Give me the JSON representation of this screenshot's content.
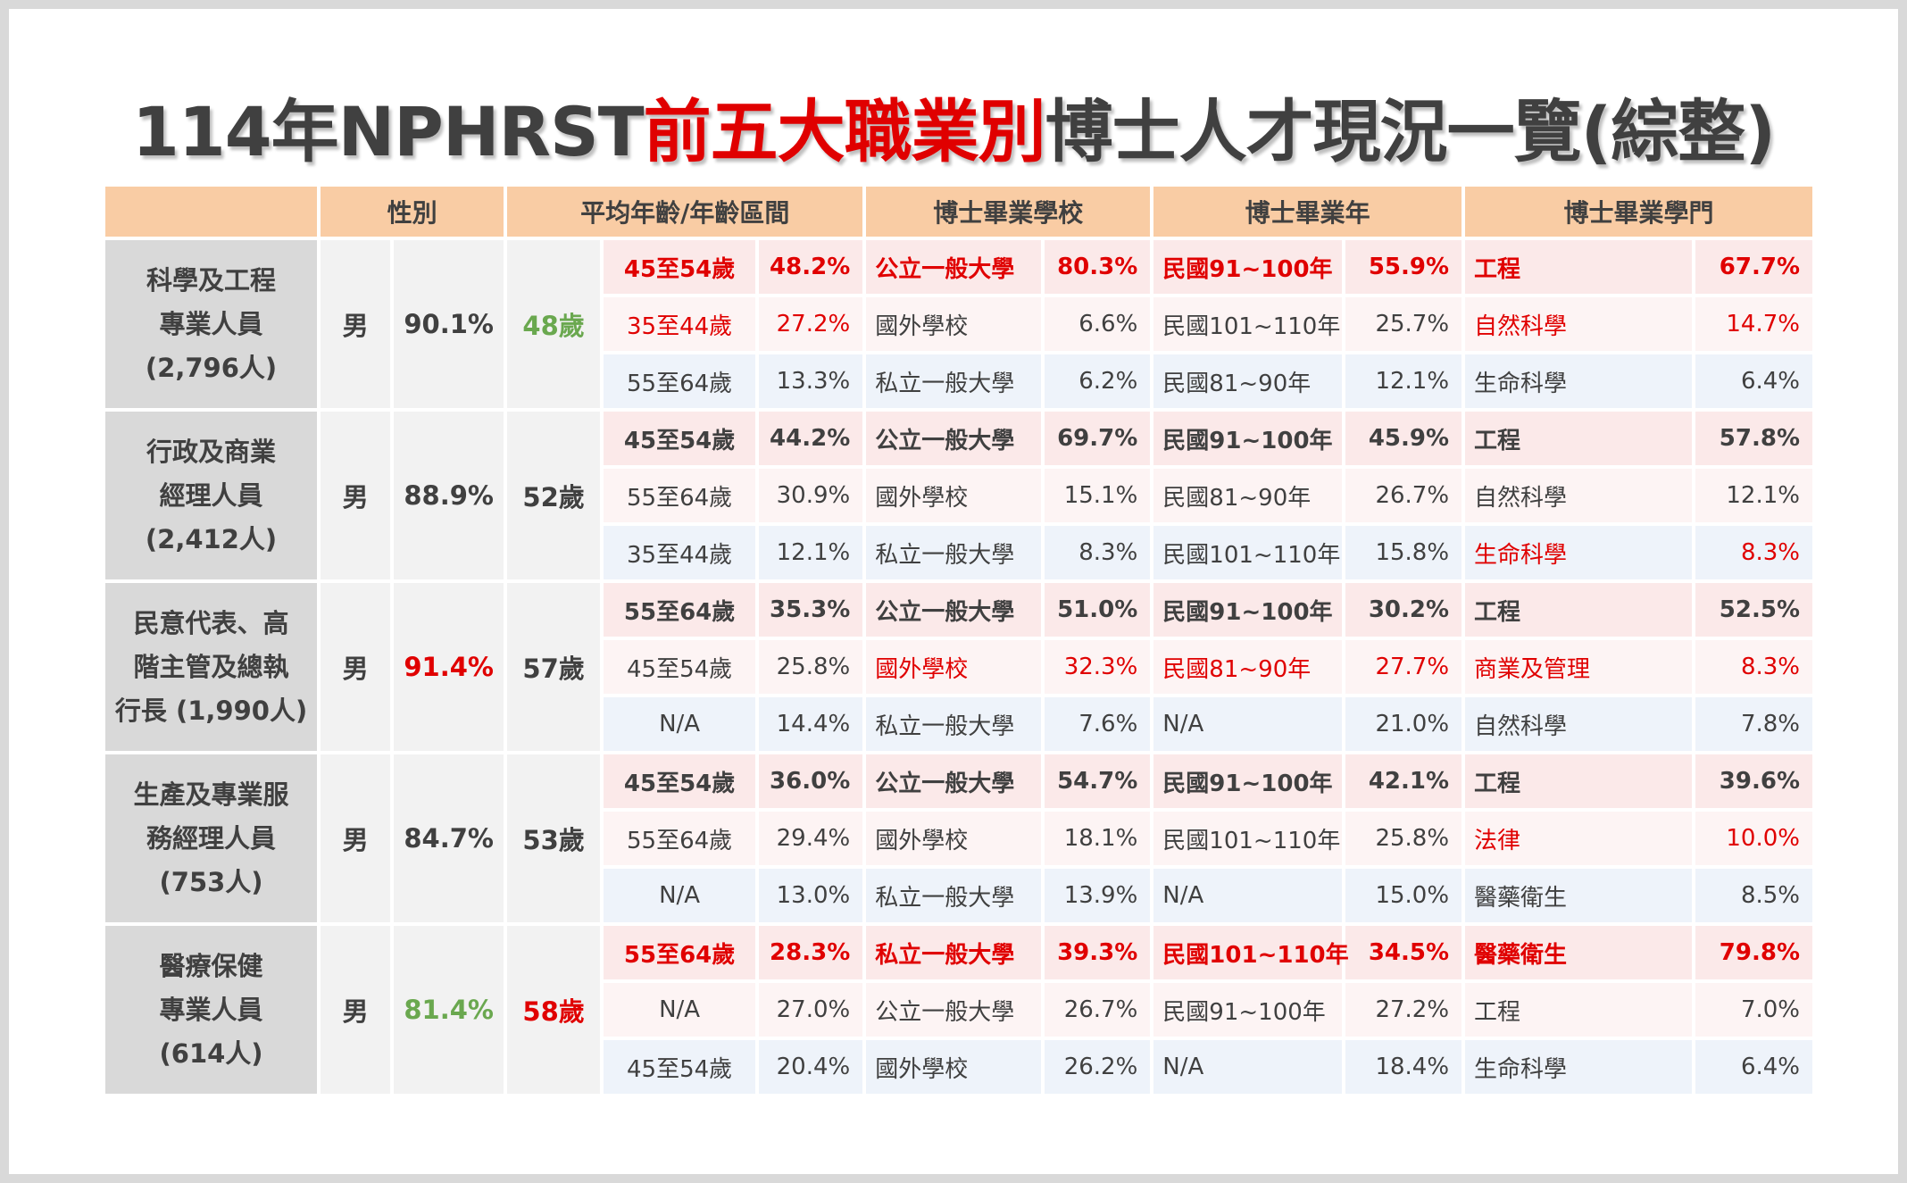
{
  "title": {
    "pre": "114年NPHRST",
    "highlight": "前五大職業別",
    "post": "博士人才現況一覽(綜整)"
  },
  "headers": {
    "occupation": "",
    "gender": "性別",
    "age": "平均年齡/年齡區間",
    "school": "博士畢業學校",
    "year": "博士畢業年",
    "field": "博士畢業學門"
  },
  "colors": {
    "accent_red": "#e00000",
    "accent_green": "#6aa84f",
    "header_bg": "#f9cca4"
  },
  "groups": [
    {
      "occupation": "科學及工程\n專業人員\n(2,796人)",
      "gender": "男",
      "gender_pct": "90.1%",
      "avg_age": "48歲",
      "rows": [
        {
          "age": "45至54歲",
          "age_pct": "48.2%",
          "school": "公立一般大學",
          "school_pct": "80.3%",
          "year": "民國91~100年",
          "year_pct": "55.9%",
          "field": "工程",
          "field_pct": "67.7%"
        },
        {
          "age": "35至44歲",
          "age_pct": "27.2%",
          "school": "國外學校",
          "school_pct": "6.6%",
          "year": "民國101~110年",
          "year_pct": "25.7%",
          "field": "自然科學",
          "field_pct": "14.7%"
        },
        {
          "age": "55至64歲",
          "age_pct": "13.3%",
          "school": "私立一般大學",
          "school_pct": "6.2%",
          "year": "民國81~90年",
          "year_pct": "12.1%",
          "field": "生命科學",
          "field_pct": "6.4%"
        }
      ]
    },
    {
      "occupation": "行政及商業\n經理人員\n(2,412人)",
      "gender": "男",
      "gender_pct": "88.9%",
      "avg_age": "52歲",
      "rows": [
        {
          "age": "45至54歲",
          "age_pct": "44.2%",
          "school": "公立一般大學",
          "school_pct": "69.7%",
          "year": "民國91~100年",
          "year_pct": "45.9%",
          "field": "工程",
          "field_pct": "57.8%"
        },
        {
          "age": "55至64歲",
          "age_pct": "30.9%",
          "school": "國外學校",
          "school_pct": "15.1%",
          "year": "民國81~90年",
          "year_pct": "26.7%",
          "field": "自然科學",
          "field_pct": "12.1%"
        },
        {
          "age": "35至44歲",
          "age_pct": "12.1%",
          "school": "私立一般大學",
          "school_pct": "8.3%",
          "year": "民國101~110年",
          "year_pct": "15.8%",
          "field": "生命科學",
          "field_pct": "8.3%"
        }
      ]
    },
    {
      "occupation": "民意代表、高\n階主管及總執\n行長 (1,990人)",
      "gender": "男",
      "gender_pct": "91.4%",
      "avg_age": "57歲",
      "rows": [
        {
          "age": "55至64歲",
          "age_pct": "35.3%",
          "school": "公立一般大學",
          "school_pct": "51.0%",
          "year": "民國91~100年",
          "year_pct": "30.2%",
          "field": "工程",
          "field_pct": "52.5%"
        },
        {
          "age": "45至54歲",
          "age_pct": "25.8%",
          "school": "國外學校",
          "school_pct": "32.3%",
          "year": "民國81~90年",
          "year_pct": "27.7%",
          "field": "商業及管理",
          "field_pct": "8.3%"
        },
        {
          "age": "N/A",
          "age_pct": "14.4%",
          "school": "私立一般大學",
          "school_pct": "7.6%",
          "year": "N/A",
          "year_pct": "21.0%",
          "field": "自然科學",
          "field_pct": "7.8%"
        }
      ]
    },
    {
      "occupation": "生產及專業服\n務經理人員\n(753人)",
      "gender": "男",
      "gender_pct": "84.7%",
      "avg_age": "53歲",
      "rows": [
        {
          "age": "45至54歲",
          "age_pct": "36.0%",
          "school": "公立一般大學",
          "school_pct": "54.7%",
          "year": "民國91~100年",
          "year_pct": "42.1%",
          "field": "工程",
          "field_pct": "39.6%"
        },
        {
          "age": "55至64歲",
          "age_pct": "29.4%",
          "school": "國外學校",
          "school_pct": "18.1%",
          "year": "民國101~110年",
          "year_pct": "25.8%",
          "field": "法律",
          "field_pct": "10.0%"
        },
        {
          "age": "N/A",
          "age_pct": "13.0%",
          "school": "私立一般大學",
          "school_pct": "13.9%",
          "year": "N/A",
          "year_pct": "15.0%",
          "field": "醫藥衛生",
          "field_pct": "8.5%"
        }
      ]
    },
    {
      "occupation": "醫療保健\n專業人員\n(614人)",
      "gender": "男",
      "gender_pct": "81.4%",
      "avg_age": "58歲",
      "rows": [
        {
          "age": "55至64歲",
          "age_pct": "28.3%",
          "school": "私立一般大學",
          "school_pct": "39.3%",
          "year": "民國101~110年",
          "year_pct": "34.5%",
          "field": "醫藥衛生",
          "field_pct": "79.8%"
        },
        {
          "age": "N/A",
          "age_pct": "27.0%",
          "school": "公立一般大學",
          "school_pct": "26.7%",
          "year": "民國91~100年",
          "year_pct": "27.2%",
          "field": "工程",
          "field_pct": "7.0%"
        },
        {
          "age": "45至54歲",
          "age_pct": "20.4%",
          "school": "國外學校",
          "school_pct": "26.2%",
          "year": "N/A",
          "year_pct": "18.4%",
          "field": "生命科學",
          "field_pct": "6.4%"
        }
      ]
    }
  ]
}
